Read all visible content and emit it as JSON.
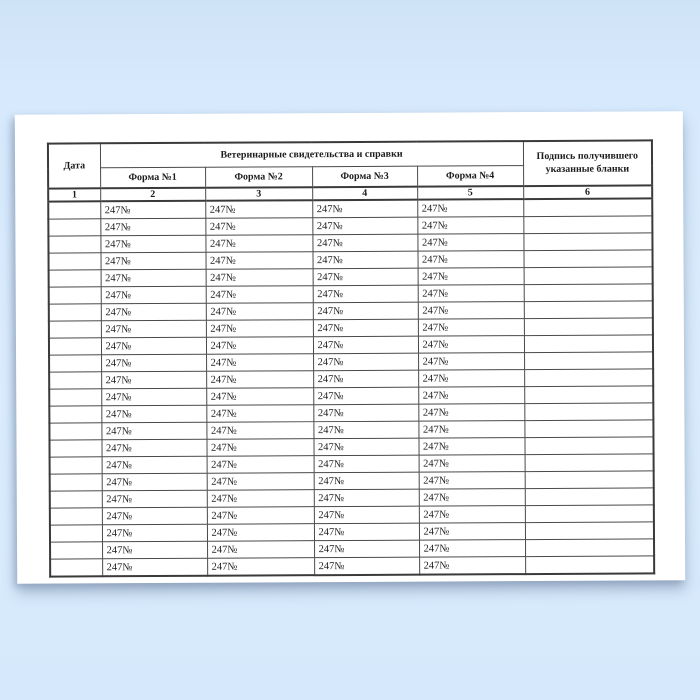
{
  "table": {
    "date_header": "Дата",
    "group_header": "Ветеринарные свидетельства и справки",
    "form_headers": [
      "Форма №1",
      "Форма №2",
      "Форма №3",
      "Форма №4"
    ],
    "signature_header": "Подпись получившего указанные бланки",
    "column_numbers": [
      "1",
      "2",
      "3",
      "4",
      "5",
      "6"
    ],
    "blank_prefix_value": "247№",
    "rows": [
      [
        "",
        "247№",
        "247№",
        "247№",
        "247№",
        ""
      ],
      [
        "",
        "247№",
        "247№",
        "247№",
        "247№",
        ""
      ],
      [
        "",
        "247№",
        "247№",
        "247№",
        "247№",
        ""
      ],
      [
        "",
        "247№",
        "247№",
        "247№",
        "247№",
        ""
      ],
      [
        "",
        "247№",
        "247№",
        "247№",
        "247№",
        ""
      ],
      [
        "",
        "247№",
        "247№",
        "247№",
        "247№",
        ""
      ],
      [
        "",
        "247№",
        "247№",
        "247№",
        "247№",
        ""
      ],
      [
        "",
        "247№",
        "247№",
        "247№",
        "247№",
        ""
      ],
      [
        "",
        "247№",
        "247№",
        "247№",
        "247№",
        ""
      ],
      [
        "",
        "247№",
        "247№",
        "247№",
        "247№",
        ""
      ],
      [
        "",
        "247№",
        "247№",
        "247№",
        "247№",
        ""
      ],
      [
        "",
        "247№",
        "247№",
        "247№",
        "247№",
        ""
      ],
      [
        "",
        "247№",
        "247№",
        "247№",
        "247№",
        ""
      ],
      [
        "",
        "247№",
        "247№",
        "247№",
        "247№",
        ""
      ],
      [
        "",
        "247№",
        "247№",
        "247№",
        "247№",
        ""
      ],
      [
        "",
        "247№",
        "247№",
        "247№",
        "247№",
        ""
      ],
      [
        "",
        "247№",
        "247№",
        "247№",
        "247№",
        ""
      ],
      [
        "",
        "247№",
        "247№",
        "247№",
        "247№",
        ""
      ],
      [
        "",
        "247№",
        "247№",
        "247№",
        "247№",
        ""
      ],
      [
        "",
        "247№",
        "247№",
        "247№",
        "247№",
        ""
      ],
      [
        "",
        "247№",
        "247№",
        "247№",
        "247№",
        ""
      ],
      [
        "",
        "247№",
        "247№",
        "247№",
        "247№",
        ""
      ]
    ]
  },
  "colors": {
    "background_top": "#cfe3f7",
    "background_bottom": "#d6e9fc",
    "paper": "#ffffff",
    "table_border": "#3a3a3a",
    "grid_line": "#4a4a4a",
    "text": "#1c1c1c"
  }
}
